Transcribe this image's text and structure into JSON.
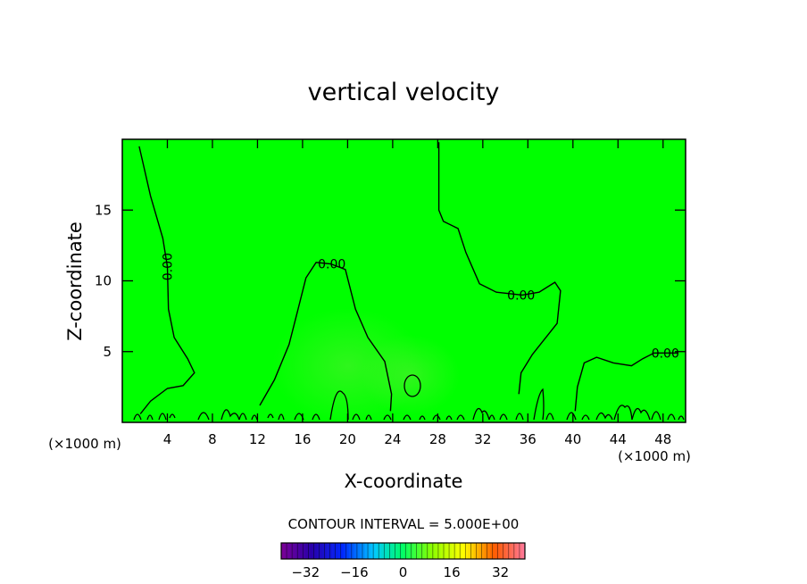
{
  "chart_data": {
    "type": "heatmap",
    "title": "vertical velocity",
    "xlabel": "X-coordinate",
    "ylabel": "Z-coordinate",
    "x_unit": "(×1000 m)",
    "y_unit": "(×1000 m)",
    "xlim": [
      0,
      50
    ],
    "ylim": [
      0,
      20
    ],
    "x_ticks": [
      4,
      8,
      12,
      16,
      20,
      24,
      28,
      32,
      36,
      40,
      44,
      48
    ],
    "y_ticks": [
      5,
      10,
      15
    ],
    "field_color": "#00ff00",
    "contour_interval_text": "CONTOUR INTERVAL = 5.000E+00",
    "contour_label": "0.00",
    "contours": [
      {
        "label": "0.00",
        "points": [
          [
            1.5,
            19.5
          ],
          [
            2.5,
            16
          ],
          [
            3.6,
            13
          ],
          [
            4.0,
            11
          ],
          [
            4.1,
            8
          ],
          [
            4.6,
            6
          ],
          [
            5.8,
            4.5
          ],
          [
            6.4,
            3.5
          ],
          [
            5.4,
            2.6
          ],
          [
            4.0,
            2.4
          ],
          [
            2.5,
            1.5
          ],
          [
            1.6,
            0.6
          ]
        ]
      },
      {
        "label": "0.00",
        "points": [
          [
            12.2,
            1.2
          ],
          [
            13.5,
            3.0
          ],
          [
            14.8,
            5.5
          ],
          [
            15.6,
            8
          ],
          [
            16.3,
            10.2
          ],
          [
            17.2,
            11.3
          ],
          [
            18.5,
            11.2
          ],
          [
            19.8,
            10.8
          ],
          [
            20.7,
            8
          ],
          [
            21.8,
            6
          ],
          [
            23.3,
            4.3
          ],
          [
            23.9,
            2.0
          ],
          [
            23.8,
            0.8
          ]
        ]
      },
      {
        "label": "0.00",
        "points": [
          [
            28.1,
            19.8
          ],
          [
            28.1,
            15
          ],
          [
            28.5,
            14.2
          ],
          [
            29.8,
            13.7
          ],
          [
            30.5,
            12
          ],
          [
            31.7,
            9.8
          ],
          [
            33.2,
            9.2
          ],
          [
            35.5,
            9.0
          ],
          [
            37.0,
            9.2
          ],
          [
            38.4,
            9.9
          ],
          [
            38.9,
            9.3
          ],
          [
            38.6,
            7.0
          ],
          [
            37.6,
            6.0
          ],
          [
            36.4,
            4.8
          ],
          [
            35.4,
            3.5
          ],
          [
            35.2,
            2.0
          ]
        ]
      },
      {
        "label": "0.00",
        "points": [
          [
            40.2,
            0.8
          ],
          [
            40.4,
            2.5
          ],
          [
            41.0,
            4.2
          ],
          [
            42.1,
            4.6
          ],
          [
            43.6,
            4.2
          ],
          [
            45.2,
            4.0
          ],
          [
            46.2,
            4.5
          ],
          [
            47.2,
            4.9
          ],
          [
            49.3,
            4.9
          ]
        ]
      }
    ],
    "colorbar_ticks": [
      -32,
      -16,
      0,
      16,
      32
    ],
    "colorbar_range": [
      -40,
      40
    ]
  }
}
